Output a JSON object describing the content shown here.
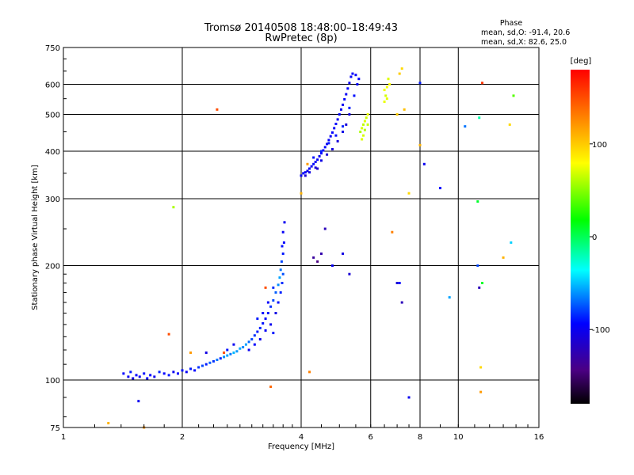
{
  "chart_data": {
    "type": "scatter",
    "title": "Tromsø 20140508 18:48:00–18:49:43",
    "subtitle": "RwPretec (8p)",
    "xlabel": "Frequency [MHz]",
    "ylabel": "Stationary phase Virtual Height [km]",
    "xscale": "log2",
    "yscale": "log",
    "xlim": [
      1,
      16
    ],
    "ylim": [
      75,
      750
    ],
    "x_ticks": [
      1,
      2,
      4,
      6,
      8,
      10,
      16
    ],
    "y_ticks": [
      75,
      100,
      200,
      300,
      400,
      500,
      600,
      750
    ],
    "grid": true,
    "phase_stats": {
      "heading": "Phase",
      "o_line": "mean, sd,O: -91.4, 20.6",
      "x_line": "mean, sd,X:  82.6, 25.0"
    },
    "colorbar": {
      "label": "[deg]",
      "range": [
        -180,
        180
      ],
      "ticks": [
        100,
        0,
        -100
      ],
      "colormap": "rainbow"
    },
    "series": [
      {
        "points": [
          [
            1.42,
            104,
            -95
          ],
          [
            1.46,
            102,
            -100
          ],
          [
            1.48,
            105,
            -90
          ],
          [
            1.5,
            101,
            -105
          ],
          [
            1.53,
            103,
            -95
          ],
          [
            1.56,
            102,
            -100
          ],
          [
            1.6,
            104,
            -92
          ],
          [
            1.63,
            101,
            -98
          ],
          [
            1.66,
            103,
            -95
          ],
          [
            1.7,
            102,
            -102
          ],
          [
            1.75,
            105,
            -88
          ],
          [
            1.8,
            104,
            -95
          ],
          [
            1.85,
            103,
            -90
          ],
          [
            1.9,
            105,
            -100
          ],
          [
            1.95,
            104,
            -95
          ],
          [
            2.0,
            106,
            -92
          ],
          [
            2.05,
            105,
            -98
          ],
          [
            2.1,
            107,
            -90
          ],
          [
            2.15,
            106,
            -95
          ],
          [
            2.2,
            108,
            -85
          ],
          [
            2.25,
            109,
            -80
          ],
          [
            2.3,
            110,
            -90
          ],
          [
            2.35,
            111,
            -75
          ],
          [
            2.4,
            112,
            -85
          ],
          [
            2.45,
            113,
            -70
          ],
          [
            2.5,
            114,
            -88
          ],
          [
            2.55,
            115,
            -65
          ],
          [
            2.6,
            116,
            -60
          ],
          [
            2.65,
            117,
            -70
          ],
          [
            2.7,
            118,
            -55
          ],
          [
            2.75,
            119,
            -62
          ],
          [
            2.8,
            121,
            -58
          ],
          [
            2.85,
            122,
            -66
          ],
          [
            2.9,
            124,
            -60
          ],
          [
            2.95,
            126,
            -72
          ],
          [
            3.0,
            128,
            -80
          ],
          [
            3.05,
            131,
            -85
          ],
          [
            3.1,
            134,
            -90
          ],
          [
            3.15,
            137,
            -88
          ],
          [
            3.2,
            141,
            -92
          ],
          [
            3.25,
            145,
            -95
          ],
          [
            3.3,
            150,
            -90
          ],
          [
            3.35,
            156,
            -85
          ],
          [
            3.4,
            162,
            -80
          ],
          [
            3.45,
            170,
            -75
          ],
          [
            3.5,
            178,
            -65
          ],
          [
            3.53,
            186,
            -60
          ],
          [
            3.55,
            195,
            -70
          ],
          [
            3.57,
            205,
            -80
          ],
          [
            3.6,
            215,
            -90
          ],
          [
            3.45,
            150,
            -105
          ],
          [
            3.35,
            140,
            -100
          ],
          [
            3.25,
            135,
            -98
          ],
          [
            3.15,
            128,
            -102
          ],
          [
            3.05,
            124,
            -96
          ],
          [
            2.95,
            120,
            -100
          ],
          [
            3.5,
            160,
            -92
          ],
          [
            3.55,
            170,
            -88
          ],
          [
            3.58,
            180,
            -85
          ],
          [
            3.6,
            190,
            -78
          ],
          [
            3.62,
            230,
            -95
          ],
          [
            3.63,
            260,
            -100
          ],
          [
            3.6,
            245,
            -98
          ],
          [
            3.58,
            225,
            -92
          ],
          [
            3.1,
            145,
            -90
          ],
          [
            3.2,
            150,
            -94
          ],
          [
            3.3,
            160,
            -96
          ],
          [
            3.4,
            175,
            -86
          ],
          [
            2.7,
            124,
            -100
          ],
          [
            2.6,
            120,
            -92
          ],
          [
            4.0,
            345,
            -100
          ],
          [
            4.05,
            350,
            -95
          ],
          [
            4.1,
            352,
            -98
          ],
          [
            4.15,
            355,
            -102
          ],
          [
            4.2,
            360,
            -97
          ],
          [
            4.25,
            365,
            -100
          ],
          [
            4.3,
            370,
            -93
          ],
          [
            4.35,
            375,
            -99
          ],
          [
            4.4,
            380,
            -96
          ],
          [
            4.45,
            388,
            -101
          ],
          [
            4.5,
            395,
            -95
          ],
          [
            4.55,
            402,
            -98
          ],
          [
            4.6,
            410,
            -94
          ],
          [
            4.65,
            418,
            -100
          ],
          [
            4.7,
            428,
            -97
          ],
          [
            4.75,
            438,
            -99
          ],
          [
            4.8,
            448,
            -95
          ],
          [
            4.85,
            460,
            -98
          ],
          [
            4.9,
            472,
            -96
          ],
          [
            4.95,
            485,
            -100
          ],
          [
            5.0,
            500,
            -95
          ],
          [
            5.05,
            515,
            -98
          ],
          [
            5.1,
            530,
            -100
          ],
          [
            5.15,
            548,
            -96
          ],
          [
            5.2,
            565,
            -99
          ],
          [
            5.25,
            585,
            -95
          ],
          [
            5.3,
            605,
            -100
          ],
          [
            5.35,
            628,
            -97
          ],
          [
            5.4,
            640,
            -95
          ],
          [
            5.5,
            635,
            -98
          ],
          [
            4.1,
            345,
            -110
          ],
          [
            4.2,
            352,
            -105
          ],
          [
            4.35,
            362,
            -108
          ],
          [
            4.5,
            378,
            -104
          ],
          [
            4.65,
            392,
            -110
          ],
          [
            4.8,
            405,
            -106
          ],
          [
            4.95,
            425,
            -108
          ],
          [
            5.1,
            450,
            -104
          ],
          [
            5.2,
            470,
            -109
          ],
          [
            5.3,
            500,
            -105
          ],
          [
            4.3,
            385,
            -92
          ],
          [
            4.5,
            400,
            -88
          ],
          [
            4.7,
            420,
            -90
          ],
          [
            4.9,
            440,
            -92
          ],
          [
            5.1,
            465,
            -88
          ],
          [
            5.3,
            520,
            -90
          ],
          [
            5.45,
            560,
            -92
          ],
          [
            5.55,
            600,
            -94
          ],
          [
            5.6,
            620,
            -96
          ],
          [
            4.4,
            360,
            -112
          ],
          [
            5.65,
            450,
            60
          ],
          [
            5.7,
            460,
            70
          ],
          [
            5.75,
            470,
            65
          ],
          [
            5.8,
            480,
            72
          ],
          [
            5.85,
            490,
            68
          ],
          [
            5.9,
            500,
            75
          ],
          [
            5.8,
            455,
            62
          ],
          [
            5.75,
            440,
            70
          ],
          [
            5.9,
            470,
            66
          ],
          [
            5.7,
            430,
            72
          ],
          [
            6.5,
            540,
            75
          ],
          [
            6.55,
            560,
            70
          ],
          [
            6.6,
            590,
            78
          ],
          [
            6.65,
            620,
            72
          ],
          [
            6.7,
            600,
            80
          ],
          [
            6.5,
            580,
            76
          ],
          [
            6.6,
            550,
            74
          ],
          [
            7.1,
            640,
            100
          ],
          [
            7.2,
            660,
            95
          ],
          [
            4.3,
            210,
            -130
          ],
          [
            4.4,
            205,
            -140
          ],
          [
            4.5,
            215,
            -125
          ],
          [
            4.6,
            250,
            -120
          ],
          [
            4.8,
            200,
            -100
          ],
          [
            5.1,
            215,
            -105
          ],
          [
            5.3,
            190,
            -110
          ],
          [
            7.5,
            310,
            95
          ],
          [
            8.2,
            370,
            -100
          ],
          [
            9.0,
            320,
            -95
          ],
          [
            7.1,
            180,
            -95
          ],
          [
            7.5,
            90,
            -100
          ],
          [
            11.2,
            200,
            -80
          ],
          [
            11.5,
            180,
            10
          ],
          [
            11.3,
            175,
            -120
          ],
          [
            11.4,
            108,
            95
          ],
          [
            11.4,
            93,
            120
          ],
          [
            13.0,
            210,
            110
          ],
          [
            13.6,
            230,
            -50
          ],
          [
            13.5,
            470,
            95
          ],
          [
            10.4,
            465,
            -70
          ],
          [
            11.2,
            295,
            10
          ],
          [
            11.3,
            490,
            -20
          ],
          [
            11.5,
            605,
            160
          ],
          [
            13.8,
            560,
            40
          ],
          [
            2.45,
            515,
            150
          ],
          [
            1.9,
            285,
            60
          ],
          [
            1.3,
            77,
            110
          ],
          [
            1.55,
            88,
            -100
          ],
          [
            1.6,
            75,
            120
          ],
          [
            1.85,
            132,
            150
          ],
          [
            2.1,
            118,
            120
          ],
          [
            2.3,
            118,
            -105
          ],
          [
            2.55,
            118,
            150
          ],
          [
            3.25,
            175,
            150
          ],
          [
            3.4,
            133,
            -90
          ],
          [
            4.2,
            105,
            130
          ],
          [
            3.35,
            96,
            140
          ],
          [
            4.0,
            310,
            110
          ],
          [
            4.15,
            370,
            120
          ],
          [
            7.0,
            180,
            -110
          ],
          [
            7.2,
            160,
            -120
          ],
          [
            9.5,
            165,
            -60
          ],
          [
            6.8,
            245,
            130
          ],
          [
            8.0,
            415,
            110
          ],
          [
            7.0,
            500,
            100
          ],
          [
            7.3,
            515,
            105
          ],
          [
            8.0,
            605,
            -90
          ]
        ]
      }
    ]
  }
}
